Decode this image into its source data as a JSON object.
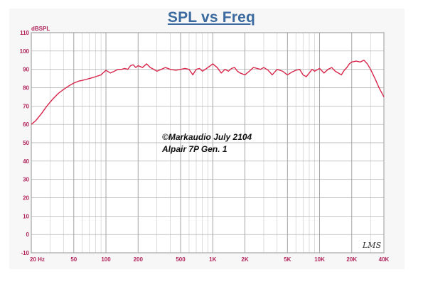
{
  "chart_data": {
    "type": "line",
    "title": "SPL vs Freq",
    "ylabel": "dBSPL",
    "xlabel": "",
    "xscale": "log",
    "xlim": [
      20,
      40000
    ],
    "ylim": [
      -10,
      110
    ],
    "y_ticks": [
      "110",
      "100",
      "90",
      "80",
      "70",
      "60",
      "50",
      "40",
      "30",
      "20",
      "10",
      "0",
      "-10"
    ],
    "x_ticks": [
      {
        "value": 20,
        "label": "20 Hz"
      },
      {
        "value": 50,
        "label": "50"
      },
      {
        "value": 100,
        "label": "100"
      },
      {
        "value": 200,
        "label": "200"
      },
      {
        "value": 500,
        "label": "500"
      },
      {
        "value": 1000,
        "label": "1K"
      },
      {
        "value": 2000,
        "label": "2K"
      },
      {
        "value": 5000,
        "label": "5K"
      },
      {
        "value": 10000,
        "label": "10K"
      },
      {
        "value": 20000,
        "label": "20K"
      },
      {
        "value": 40000,
        "label": "40K"
      }
    ],
    "grid": true,
    "line_color": "#d8254a",
    "series": [
      {
        "x": [
          20,
          22,
          25,
          28,
          32,
          36,
          40,
          45,
          50,
          55,
          60,
          65,
          70,
          75,
          80,
          90,
          100,
          110,
          120,
          130,
          140,
          150,
          160,
          170,
          180,
          190,
          200,
          220,
          240,
          260,
          280,
          300,
          330,
          360,
          400,
          450,
          500,
          550,
          600,
          650,
          700,
          750,
          800,
          850,
          900,
          950,
          1000,
          1100,
          1200,
          1300,
          1400,
          1500,
          1600,
          1700,
          1800,
          2000,
          2200,
          2400,
          2600,
          2800,
          3000,
          3300,
          3600,
          4000,
          4500,
          5000,
          5500,
          6000,
          6500,
          7000,
          7500,
          8000,
          8500,
          9000,
          10000,
          11000,
          12000,
          13000,
          14000,
          15000,
          16000,
          17000,
          18000,
          19000,
          20000,
          22000,
          24000,
          26000,
          28000,
          30000,
          33000,
          36000,
          40000
        ],
        "y": [
          60,
          62,
          66,
          70,
          74,
          77,
          79,
          81,
          82.5,
          83.5,
          84,
          84.5,
          85,
          85.5,
          86,
          87,
          89.5,
          88,
          89,
          90,
          90,
          90.5,
          90,
          92,
          92.5,
          91,
          92,
          91,
          93,
          91,
          90,
          89,
          90,
          91,
          90,
          89.5,
          90,
          90.5,
          90,
          87,
          90,
          90.5,
          89,
          90,
          91,
          92,
          93,
          91,
          88,
          90,
          89,
          90.5,
          91,
          89,
          88,
          87,
          89,
          91,
          90.5,
          90,
          91,
          89.5,
          87,
          90,
          89,
          87,
          88.5,
          89.5,
          90,
          87,
          86,
          88,
          90,
          89,
          90.5,
          88,
          90,
          91,
          89,
          88,
          87,
          89.5,
          91,
          93,
          94,
          94.5,
          94,
          95,
          93,
          90,
          85,
          80,
          75
        ]
      }
    ],
    "annotations": [
      "©Markaudio July 2104",
      "Alpair 7P Gen. 1"
    ],
    "signature": "LMS"
  }
}
